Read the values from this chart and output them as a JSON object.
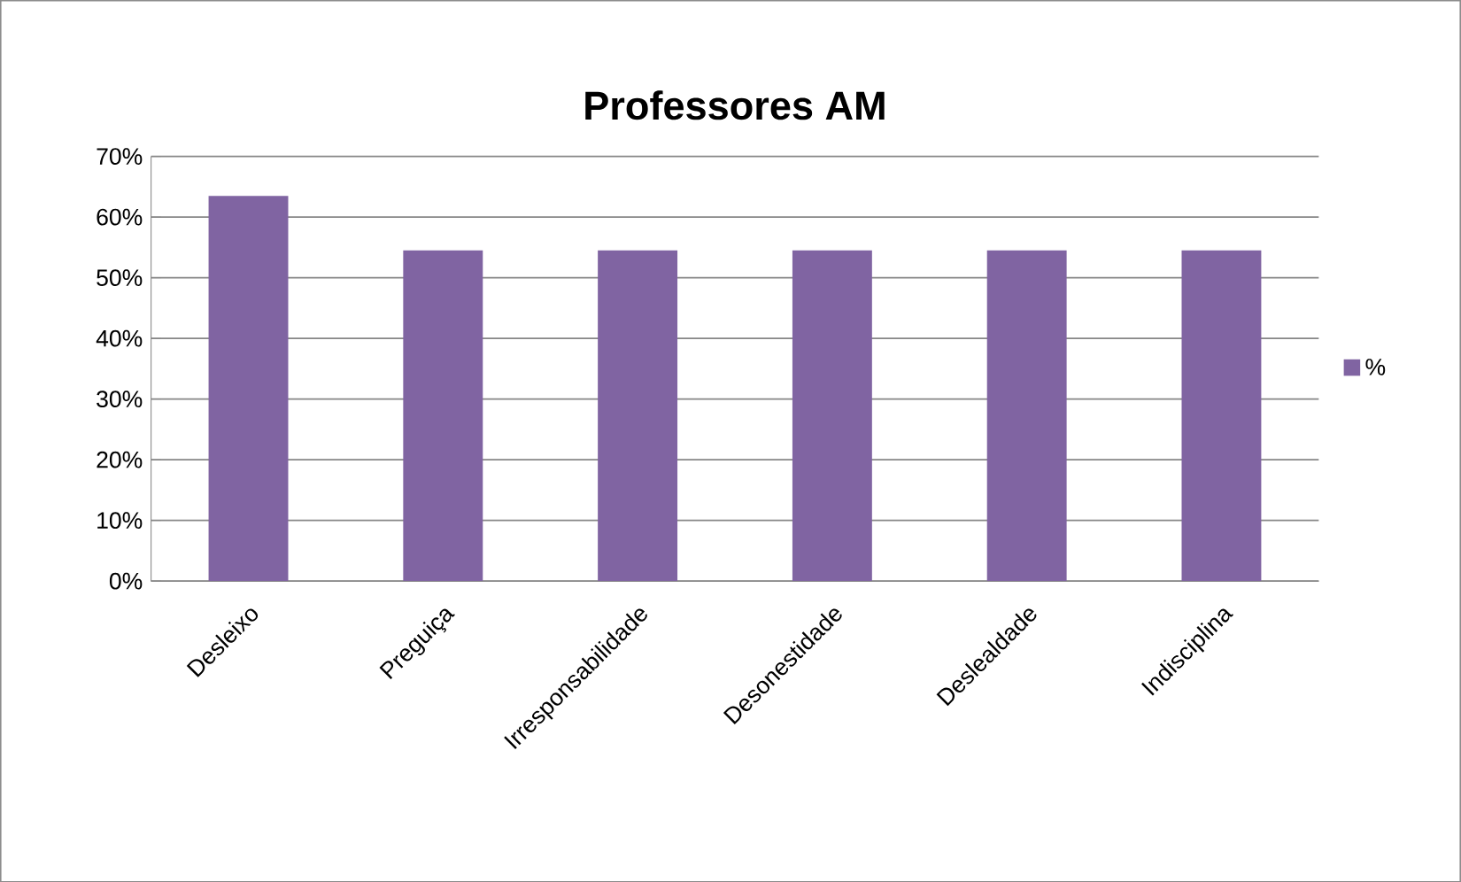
{
  "chart_data": {
    "type": "bar",
    "title": "Professores AM",
    "categories": [
      "Desleixo",
      "Preguiça",
      "Irresponsabilidade",
      "Desonestidade",
      "Deslealdade",
      "Indisciplina"
    ],
    "series": [
      {
        "name": "%",
        "color": "#8064a2",
        "values": [
          63.5,
          54.5,
          54.5,
          54.5,
          54.5,
          54.5
        ]
      }
    ],
    "ylim": [
      0,
      70
    ],
    "yticks": [
      {
        "value": 0,
        "label": "0%"
      },
      {
        "value": 10,
        "label": "10%"
      },
      {
        "value": 20,
        "label": "20%"
      },
      {
        "value": 30,
        "label": "30%"
      },
      {
        "value": 40,
        "label": "40%"
      },
      {
        "value": 50,
        "label": "50%"
      },
      {
        "value": 60,
        "label": "60%"
      },
      {
        "value": 70,
        "label": "70%"
      }
    ],
    "grid": "y",
    "legend": "right"
  }
}
